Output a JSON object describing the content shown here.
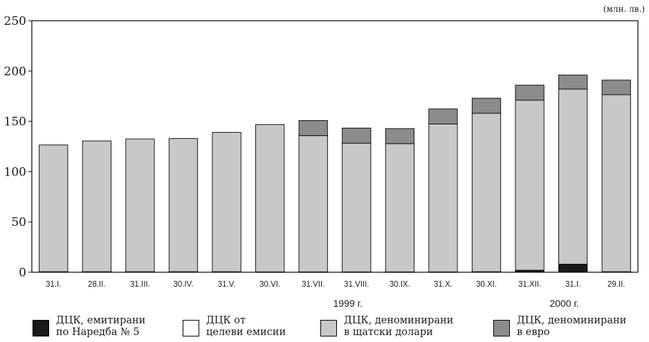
{
  "unit_label": "(млн. лв.)",
  "chart_data": {
    "type": "bar",
    "stacked": true,
    "categories": [
      "31.I.",
      "28.II.",
      "31.III.",
      "30.IV.",
      "31.V.",
      "30.VI.",
      "31.VII.",
      "31.VIII.",
      "30.IX.",
      "31.X.",
      "30.XI.",
      "31.XII.",
      "31.I.",
      "29.II."
    ],
    "year_labels": [
      {
        "text": "1999 г.",
        "after_category_index": 7
      },
      {
        "text": "2000 г.",
        "after_category_index": 12
      }
    ],
    "ylim": [
      0,
      250
    ],
    "yticks": [
      0,
      50,
      100,
      150,
      200,
      250
    ],
    "grid": false,
    "legend_position": "bottom",
    "series": [
      {
        "name": "ДЦК, емитирани по Наредба № 5",
        "legend_lines": [
          "ДЦК, емитирани",
          "по Наредба № 5"
        ],
        "color": "#1a1a1a",
        "values": [
          0.5,
          0.5,
          0.5,
          0.5,
          0.5,
          0.3,
          0.3,
          0.3,
          0.3,
          0.3,
          0.5,
          2,
          8,
          0.5
        ]
      },
      {
        "name": "ДЦК от целеви емисии",
        "legend_lines": [
          "ДЦК от",
          "целеви емисии"
        ],
        "color": "#ffffff",
        "values": [
          0,
          0,
          0,
          0,
          0,
          0,
          0,
          0,
          0,
          0,
          0,
          0,
          0,
          0
        ]
      },
      {
        "name": "ДЦК, деноминирани в щатски долари",
        "legend_lines": [
          "ДЦК, деноминирани",
          "в щатски долари"
        ],
        "color": "#c8c8c8",
        "values": [
          126,
          130,
          132,
          132.5,
          138.5,
          146.5,
          135.5,
          128,
          127.5,
          147,
          157.5,
          169,
          174,
          176
        ]
      },
      {
        "name": "ДЦК, деноминирани в евро",
        "legend_lines": [
          "ДЦК, деноминирани",
          "в евро"
        ],
        "color": "#8c8c8c",
        "values": [
          0,
          0,
          0,
          0,
          0,
          0,
          15,
          15,
          15,
          15,
          15,
          15,
          14,
          14.5
        ]
      }
    ]
  }
}
